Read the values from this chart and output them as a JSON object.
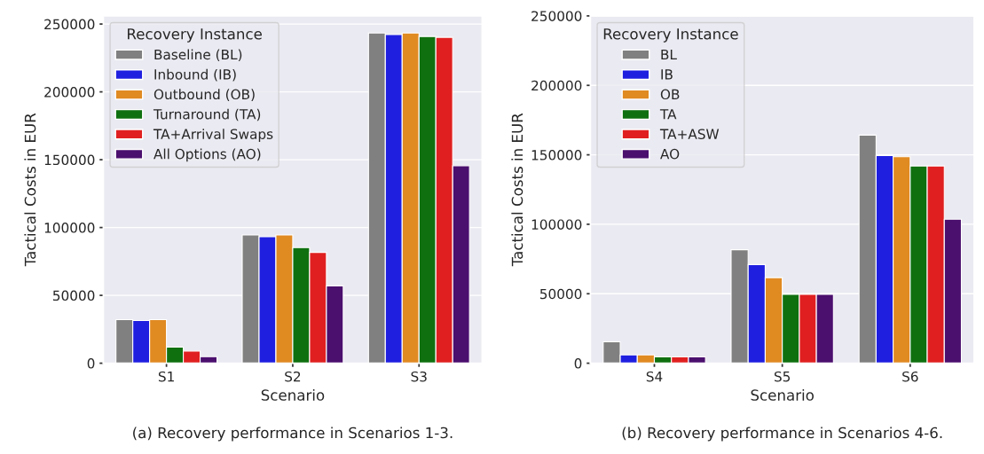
{
  "chart_data": [
    {
      "type": "bar",
      "categories": [
        "S1",
        "S2",
        "S3"
      ],
      "xlabel": "Scenario",
      "ylabel": "Tactical Costs in EUR",
      "legend_title": "Recovery Instance",
      "legend": "top left",
      "grid": "y",
      "ylim": [
        0,
        256000
      ],
      "yticks": [
        0,
        50000,
        100000,
        150000,
        200000,
        250000
      ],
      "series": [
        {
          "name": "Baseline (BL)",
          "color": "#808080",
          "values": [
            32100,
            94500,
            243400
          ]
        },
        {
          "name": "Inbound (IB)",
          "color": "#1f1fe0",
          "values": [
            31400,
            93200,
            242200
          ]
        },
        {
          "name": "Outbound (OB)",
          "color": "#e08a22",
          "values": [
            32100,
            94500,
            243400
          ]
        },
        {
          "name": "Turnaround (TA)",
          "color": "#0f700f",
          "values": [
            11800,
            85200,
            240800
          ]
        },
        {
          "name": "TA+Arrival Swaps",
          "color": "#e02020",
          "values": [
            9000,
            81700,
            240200
          ]
        },
        {
          "name": "All Options (AO)",
          "color": "#4b0f6e",
          "values": [
            4800,
            57000,
            145600
          ]
        }
      ],
      "annotations": [
        "(a) Recovery performance in Scenarios 1-3."
      ]
    },
    {
      "type": "bar",
      "categories": [
        "S4",
        "S5",
        "S6"
      ],
      "xlabel": "Scenario",
      "ylabel": "Tactical Costs in EUR",
      "legend_title": "Recovery Instance",
      "legend": "top left",
      "grid": "y",
      "ylim": [
        0,
        250000
      ],
      "yticks": [
        0,
        50000,
        100000,
        150000,
        200000,
        250000
      ],
      "series": [
        {
          "name": "BL",
          "color": "#808080",
          "values": [
            15400,
            81700,
            164200
          ]
        },
        {
          "name": "IB",
          "color": "#1f1fe0",
          "values": [
            6000,
            71000,
            149500
          ]
        },
        {
          "name": "OB",
          "color": "#e08a22",
          "values": [
            6000,
            61600,
            148600
          ]
        },
        {
          "name": "TA",
          "color": "#0f700f",
          "values": [
            4500,
            49500,
            142000
          ]
        },
        {
          "name": "TA+ASW",
          "color": "#e02020",
          "values": [
            4500,
            49500,
            142000
          ]
        },
        {
          "name": "AO",
          "color": "#4b0f6e",
          "values": [
            4500,
            49500,
            103600
          ]
        }
      ],
      "annotations": [
        "(b) Recovery performance in Scenarios 4-6."
      ]
    }
  ]
}
